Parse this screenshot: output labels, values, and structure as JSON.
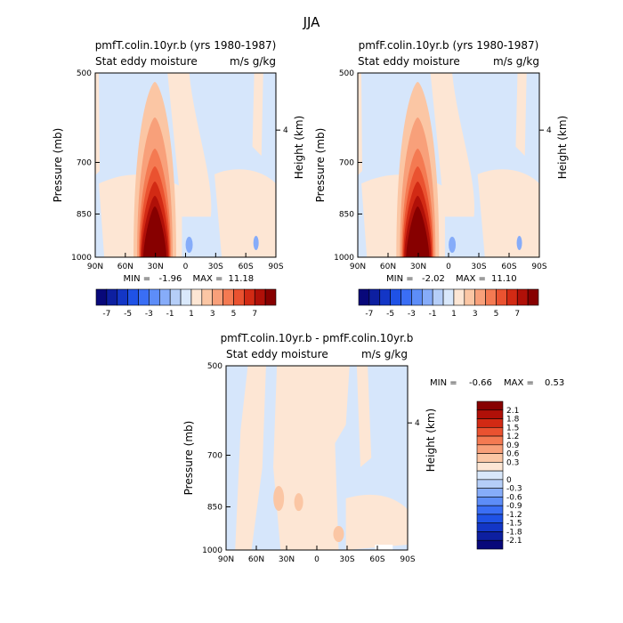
{
  "figure": {
    "suptitle": "JJA"
  },
  "chart_data": [
    {
      "type": "heatmap",
      "title": "pmfT.colin.10yr.b (yrs 1980-1987)",
      "subtitle_left": "Stat eddy moisture",
      "subtitle_right": "m/s g/kg",
      "ylabel": "Pressure (mb)",
      "ylabel_right": "Height (km)",
      "yticks": [
        "500",
        "700",
        "850",
        "1000"
      ],
      "yticks_right": [
        "4"
      ],
      "xticks": [
        "90N",
        "60N",
        "30N",
        "0",
        "30S",
        "60S",
        "90S"
      ],
      "stats": {
        "min_label": "MIN =",
        "min": "-1.96",
        "max_label": "MAX =",
        "max": "11.18"
      },
      "background_level": "0",
      "peak": {
        "lat": "~27N",
        "pressure": "~925 mb",
        "value_level": ">7"
      },
      "colorbar": {
        "orientation": "horizontal",
        "tick_labels": [
          "-7",
          "-5",
          "-3",
          "-1",
          "1",
          "3",
          "5",
          "7"
        ]
      }
    },
    {
      "type": "heatmap",
      "title": "pmfF.colin.10yr.b (yrs 1980-1987)",
      "subtitle_left": "Stat eddy moisture",
      "subtitle_right": "m/s g/kg",
      "ylabel": "Pressure (mb)",
      "ylabel_right": "Height (km)",
      "yticks": [
        "500",
        "700",
        "850",
        "1000"
      ],
      "yticks_right": [
        "4"
      ],
      "xticks": [
        "90N",
        "60N",
        "30N",
        "0",
        "30S",
        "60S",
        "90S"
      ],
      "stats": {
        "min_label": "MIN =",
        "min": "-2.02",
        "max_label": "MAX =",
        "max": "11.10"
      },
      "background_level": "0",
      "peak": {
        "lat": "~27N",
        "pressure": "~925 mb",
        "value_level": ">7"
      },
      "colorbar": {
        "orientation": "horizontal",
        "tick_labels": [
          "-7",
          "-5",
          "-3",
          "-1",
          "1",
          "3",
          "5",
          "7"
        ]
      }
    },
    {
      "type": "heatmap",
      "title": "pmfT.colin.10yr.b - pmfF.colin.10yr.b",
      "subtitle_left": "Stat eddy moisture",
      "subtitle_right": "m/s g/kg",
      "ylabel": "Pressure (mb)",
      "ylabel_right": "Height (km)",
      "yticks": [
        "500",
        "700",
        "850",
        "1000"
      ],
      "yticks_right": [
        "4"
      ],
      "xticks": [
        "90N",
        "60N",
        "30N",
        "0",
        "30S",
        "60S",
        "90S"
      ],
      "stats": {
        "min_label": "MIN =",
        "min": "-0.66",
        "max_label": "MAX =",
        "max": "0.53"
      },
      "colorbar": {
        "orientation": "vertical",
        "tick_labels": [
          "2.1",
          "1.8",
          "1.5",
          "1.2",
          "0.9",
          "0.6",
          "0.3",
          "0",
          "-0.3",
          "-0.6",
          "-0.9",
          "-1.2",
          "-1.5",
          "-1.8",
          "-2.1"
        ]
      }
    }
  ],
  "colors": {
    "horizontal_colorbar": [
      "#08087a",
      "#0d1fa0",
      "#1336c6",
      "#1f52e6",
      "#3a6ef5",
      "#5d8df8",
      "#86acf9",
      "#b5cef8",
      "#d9e8fb",
      "#fde6d4",
      "#fbc6a4",
      "#f8a07a",
      "#f47a52",
      "#ea5230",
      "#d22a14",
      "#b01008",
      "#870000"
    ],
    "vertical_colorbar": [
      "#870000",
      "#b01008",
      "#d22a14",
      "#ea5230",
      "#f47a52",
      "#f8a07a",
      "#fbc6a4",
      "#fde6d4",
      "#d9e8fb",
      "#b5cef8",
      "#86acf9",
      "#5d8df8",
      "#3a6ef5",
      "#1f52e6",
      "#1336c6",
      "#0d1fa0",
      "#08087a"
    ],
    "field_background": "#d6e6fb",
    "positive_light": "#fde6d4"
  }
}
